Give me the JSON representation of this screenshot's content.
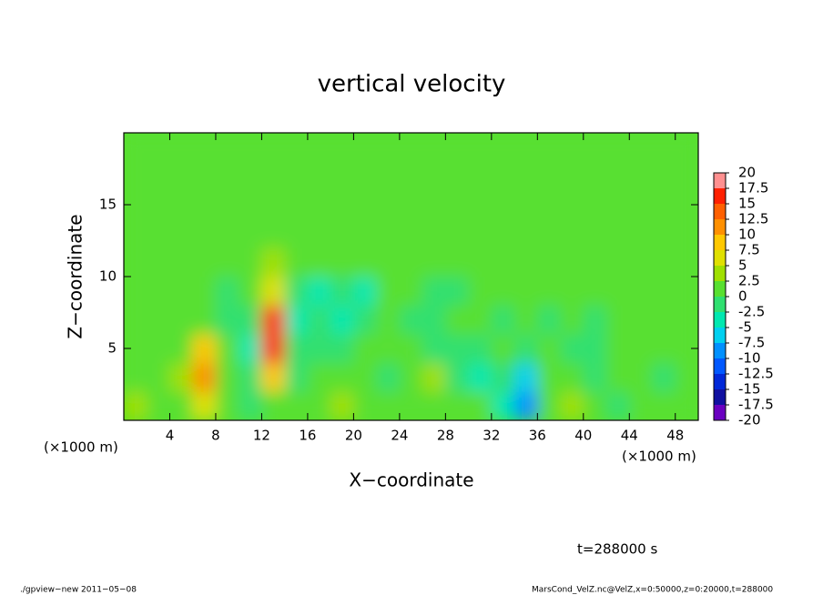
{
  "chart_data": {
    "type": "heatmap",
    "title": "vertical velocity",
    "xlabel": "X−coordinate",
    "ylabel": "Z−coordinate",
    "x_unit": "(×1000 m)",
    "y_unit": "(×1000 m)",
    "time_label": "t=288000 s",
    "footer_left": "./gpview−new  2011−05−08",
    "footer_right": "MarsCond_VelZ.nc@VelZ,x=0:50000,z=0:20000,t=288000",
    "xlim": [
      0,
      50
    ],
    "ylim": [
      0,
      20
    ],
    "xticks": [
      4,
      8,
      12,
      16,
      20,
      24,
      28,
      32,
      36,
      40,
      44,
      48
    ],
    "yticks": [
      5,
      10,
      15
    ],
    "x": [
      1,
      3,
      5,
      7,
      9,
      11,
      13,
      15,
      17,
      19,
      21,
      23,
      25,
      27,
      29,
      31,
      33,
      35,
      37,
      39,
      41,
      43,
      45,
      47,
      49
    ],
    "y": [
      1,
      3,
      5,
      7,
      9,
      11,
      13,
      15,
      17,
      19
    ],
    "z": [
      [
        3,
        2,
        1,
        6,
        0,
        -1,
        2,
        0,
        1,
        3,
        1,
        0,
        1,
        0,
        2,
        1,
        -3,
        -10,
        0,
        3,
        1,
        -1,
        0,
        1,
        0
      ],
      [
        2,
        1,
        3,
        10,
        1,
        -2,
        8,
        -1,
        0,
        1,
        2,
        -1,
        1,
        3,
        -2,
        -3,
        -1,
        -6,
        1,
        0,
        -1,
        1,
        0,
        -1,
        1
      ],
      [
        1,
        0,
        2,
        8,
        0,
        -3,
        16,
        -2,
        -1,
        -2,
        0,
        2,
        0,
        -1,
        -2,
        -1,
        0,
        -1,
        0,
        -2,
        -1,
        0,
        1,
        0,
        1
      ],
      [
        0,
        1,
        1,
        2,
        -1,
        -2,
        15,
        -3,
        -2,
        -4,
        -1,
        0,
        -1,
        -2,
        1,
        0,
        -1,
        0,
        -1,
        0,
        -1,
        0,
        0,
        1,
        0
      ],
      [
        0,
        0,
        1,
        0,
        -1,
        1,
        6,
        -2,
        -3,
        -2,
        -3,
        0,
        0,
        -1,
        -1,
        0,
        1,
        0,
        0,
        0,
        1,
        0,
        1,
        0,
        0
      ],
      [
        1,
        1,
        0,
        1,
        1,
        0,
        3,
        1,
        0,
        0,
        1,
        1,
        0,
        1,
        1,
        0,
        1,
        1,
        0,
        1,
        1,
        1,
        0,
        1,
        1
      ],
      [
        1,
        1,
        1,
        1,
        1,
        1,
        2,
        1,
        1,
        1,
        1,
        1,
        1,
        1,
        1,
        1,
        1,
        1,
        1,
        1,
        1,
        1,
        1,
        2,
        1
      ],
      [
        1,
        1,
        1,
        1,
        1,
        1,
        1,
        1,
        1,
        1,
        1,
        1,
        1,
        1,
        1,
        1,
        1,
        1,
        1,
        1,
        1,
        1,
        1,
        1,
        1
      ],
      [
        1,
        1,
        1,
        1,
        1,
        1,
        1,
        1,
        1,
        1,
        1,
        1,
        1,
        1,
        1,
        1,
        1,
        1,
        1,
        1,
        1,
        1,
        1,
        1,
        1
      ],
      [
        1,
        1,
        1,
        1,
        1,
        1,
        1,
        1,
        1,
        1,
        1,
        1,
        1,
        1,
        1,
        1,
        1,
        1,
        1,
        1,
        1,
        1,
        1,
        1,
        1
      ]
    ],
    "colorbar": {
      "levels": [
        -20,
        -17.5,
        -15,
        -12.5,
        -10,
        -7.5,
        -5,
        -2.5,
        0,
        2.5,
        5,
        7.5,
        10,
        12.5,
        15,
        17.5,
        20
      ],
      "colors": [
        "#6a00c0",
        "#1010a0",
        "#0028d8",
        "#0058ff",
        "#0090ff",
        "#00d0f0",
        "#00e8b0",
        "#30e070",
        "#58e030",
        "#a0e000",
        "#e0e000",
        "#ffc800",
        "#ff9000",
        "#ff6000",
        "#ff2000",
        "#ff9090"
      ]
    }
  }
}
